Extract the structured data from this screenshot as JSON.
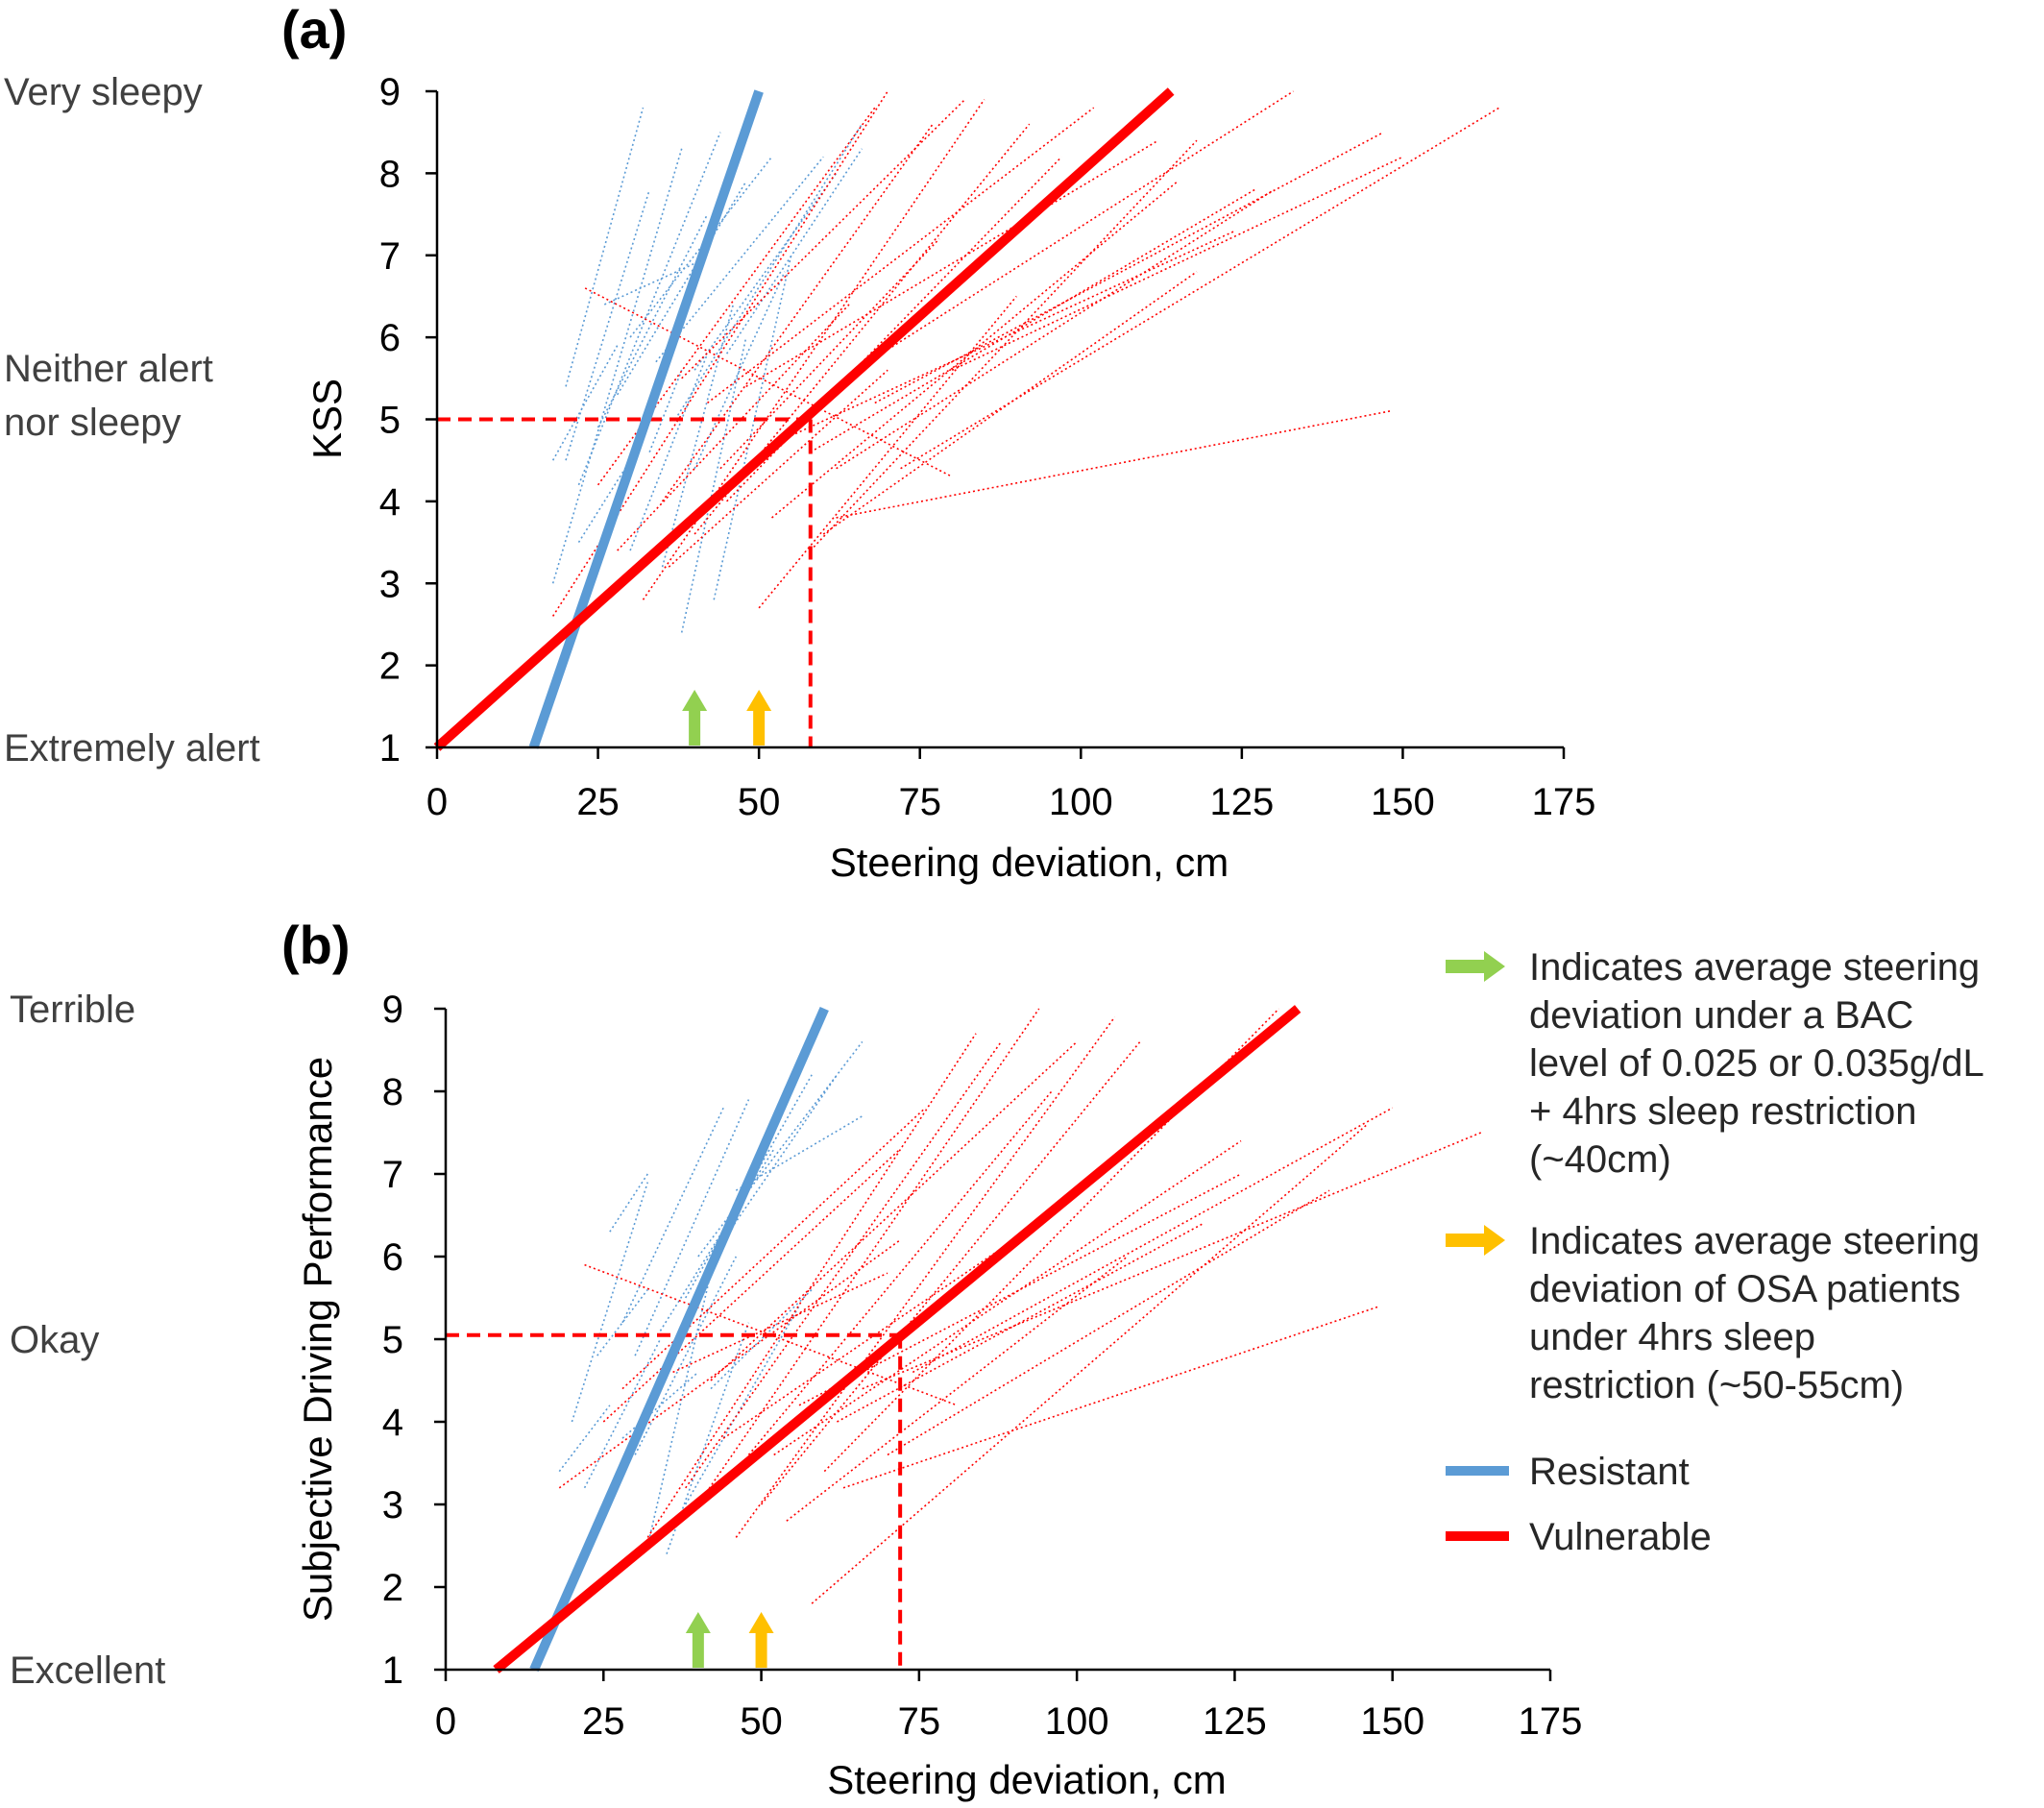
{
  "chart_data": [
    {
      "type": "line",
      "panel": "(a)",
      "xlabel": "Steering deviation, cm",
      "ylabel": "KSS",
      "xlim": [
        0,
        175
      ],
      "ylim": [
        1,
        9
      ],
      "xticks": [
        0,
        25,
        50,
        75,
        100,
        125,
        150,
        175
      ],
      "yticks": [
        1,
        2,
        3,
        4,
        5,
        6,
        7,
        8,
        9
      ],
      "side_labels": [
        {
          "y": 9,
          "text": "Very sleepy"
        },
        {
          "y": 5.3,
          "text": "Neither alert\nnor sleepy"
        },
        {
          "y": 1,
          "text": "Extremely alert"
        }
      ],
      "series": [
        {
          "name": "Resistant",
          "color": "#5b9bd5",
          "kind": "group",
          "x": [
            15,
            50
          ],
          "y": [
            1,
            9
          ]
        },
        {
          "name": "Vulnerable",
          "color": "#ff0000",
          "kind": "group",
          "x": [
            0,
            114
          ],
          "y": [
            1,
            9
          ]
        }
      ],
      "individual_lines": {
        "resistant": [
          [
            [
              20,
              5.4
            ],
            [
              32,
              8.8
            ]
          ],
          [
            [
              18,
              3.0
            ],
            [
              38,
              8.3
            ]
          ],
          [
            [
              22,
              4.2
            ],
            [
              44,
              8.5
            ]
          ],
          [
            [
              20,
              4.5
            ],
            [
              33,
              7.8
            ]
          ],
          [
            [
              25,
              4.9
            ],
            [
              42,
              7.5
            ]
          ],
          [
            [
              28,
              5.3
            ],
            [
              48,
              7.9
            ]
          ],
          [
            [
              30,
              6.0
            ],
            [
              52,
              8.2
            ]
          ],
          [
            [
              34,
              5.7
            ],
            [
              60,
              8.2
            ]
          ],
          [
            [
              37,
              5.0
            ],
            [
              66,
              8.6
            ]
          ],
          [
            [
              40,
              5.6
            ],
            [
              62,
              8.0
            ]
          ],
          [
            [
              45,
              5.8
            ],
            [
              66,
              8.3
            ]
          ],
          [
            [
              26,
              6.4
            ],
            [
              40,
              6.9
            ]
          ],
          [
            [
              35,
              3.2
            ],
            [
              46,
              6.4
            ]
          ],
          [
            [
              38,
              2.4
            ],
            [
              48,
              6.0
            ]
          ],
          [
            [
              30,
              3.4
            ],
            [
              42,
              5.8
            ]
          ],
          [
            [
              40,
              4.4
            ],
            [
              54,
              6.8
            ]
          ],
          [
            [
              43,
              2.8
            ],
            [
              55,
              7.0
            ]
          ],
          [
            [
              18,
              4.5
            ],
            [
              28,
              5.9
            ]
          ],
          [
            [
              22,
              3.5
            ],
            [
              30,
              4.5
            ]
          ],
          [
            [
              33,
              4.6
            ],
            [
              38,
              5.6
            ]
          ]
        ],
        "vulnerable": [
          [
            [
              18,
              2.6
            ],
            [
              70,
              9.0
            ]
          ],
          [
            [
              25,
              4.2
            ],
            [
              68,
              8.8
            ]
          ],
          [
            [
              32,
              2.8
            ],
            [
              85,
              8.9
            ]
          ],
          [
            [
              35,
              4.0
            ],
            [
              77,
              8.6
            ]
          ],
          [
            [
              38,
              5.5
            ],
            [
              82,
              8.9
            ]
          ],
          [
            [
              40,
              3.6
            ],
            [
              92,
              8.6
            ]
          ],
          [
            [
              42,
              5.2
            ],
            [
              102,
              8.8
            ]
          ],
          [
            [
              45,
              4.0
            ],
            [
              97,
              8.2
            ]
          ],
          [
            [
              48,
              5.4
            ],
            [
              112,
              8.4
            ]
          ],
          [
            [
              52,
              3.8
            ],
            [
              115,
              7.9
            ]
          ],
          [
            [
              55,
              4.8
            ],
            [
              124,
              7.3
            ]
          ],
          [
            [
              58,
              4.6
            ],
            [
              127,
              7.8
            ]
          ],
          [
            [
              60,
              3.6
            ],
            [
              118,
              6.8
            ]
          ],
          [
            [
              62,
              4.4
            ],
            [
              130,
              7.8
            ]
          ],
          [
            [
              65,
              5.6
            ],
            [
              133,
              9.0
            ]
          ],
          [
            [
              68,
              5.2
            ],
            [
              147,
              8.5
            ]
          ],
          [
            [
              62,
              3.8
            ],
            [
              148,
              5.1
            ]
          ],
          [
            [
              23,
              6.6
            ],
            [
              80,
              4.3
            ]
          ],
          [
            [
              28,
              3.4
            ],
            [
              64,
              6.4
            ]
          ],
          [
            [
              50,
              2.7
            ],
            [
              90,
              6.5
            ]
          ],
          [
            [
              58,
              3.4
            ],
            [
              118,
              8.4
            ]
          ],
          [
            [
              72,
              4.4
            ],
            [
              165,
              8.8
            ]
          ],
          [
            [
              80,
              5.6
            ],
            [
              150,
              8.2
            ]
          ],
          [
            [
              44,
              4.4
            ],
            [
              78,
              7.2
            ]
          ],
          [
            [
              36,
              3.2
            ],
            [
              70,
              5.6
            ]
          ]
        ]
      },
      "reference": {
        "x": 58,
        "y": 5
      },
      "arrows": [
        {
          "x": 40,
          "color": "#92d050"
        },
        {
          "x": 50,
          "color": "#ffc000"
        }
      ]
    },
    {
      "type": "line",
      "panel": "(b)",
      "xlabel": "Steering deviation, cm",
      "ylabel": "Subjective Driving Performance",
      "xlim": [
        0,
        175
      ],
      "ylim": [
        1,
        9
      ],
      "xticks": [
        0,
        25,
        50,
        75,
        100,
        125,
        150,
        175
      ],
      "yticks": [
        1,
        2,
        3,
        4,
        5,
        6,
        7,
        8,
        9
      ],
      "side_labels": [
        {
          "y": 9,
          "text": "Terrible"
        },
        {
          "y": 5,
          "text": "Okay"
        },
        {
          "y": 1,
          "text": "Excellent"
        }
      ],
      "series": [
        {
          "name": "Resistant",
          "color": "#5b9bd5",
          "kind": "group",
          "x": [
            14,
            60
          ],
          "y": [
            1,
            9
          ]
        },
        {
          "name": "Vulnerable",
          "color": "#ff0000",
          "kind": "group",
          "x": [
            8,
            135
          ],
          "y": [
            1,
            9
          ]
        }
      ],
      "individual_lines": {
        "resistant": [
          [
            [
              20,
              4.0
            ],
            [
              32,
              6.9
            ]
          ],
          [
            [
              26,
              6.3
            ],
            [
              32,
              7.0
            ]
          ],
          [
            [
              28,
              5.2
            ],
            [
              44,
              7.8
            ]
          ],
          [
            [
              30,
              4.8
            ],
            [
              48,
              7.9
            ]
          ],
          [
            [
              34,
              5.1
            ],
            [
              52,
              7.3
            ]
          ],
          [
            [
              38,
              5.5
            ],
            [
              58,
              8.2
            ]
          ],
          [
            [
              40,
              6.0
            ],
            [
              66,
              8.6
            ]
          ],
          [
            [
              44,
              6.2
            ],
            [
              62,
              8.2
            ]
          ],
          [
            [
              46,
              6.8
            ],
            [
              66,
              7.7
            ]
          ],
          [
            [
              30,
              3.6
            ],
            [
              46,
              6.0
            ]
          ],
          [
            [
              32,
              2.5
            ],
            [
              42,
              5.8
            ]
          ],
          [
            [
              22,
              3.2
            ],
            [
              34,
              5.0
            ]
          ],
          [
            [
              35,
              2.4
            ],
            [
              48,
              5.2
            ]
          ],
          [
            [
              38,
              3.0
            ],
            [
              56,
              5.4
            ]
          ],
          [
            [
              28,
              3.8
            ],
            [
              40,
              4.6
            ]
          ],
          [
            [
              42,
              4.4
            ],
            [
              58,
              5.6
            ]
          ],
          [
            [
              18,
              3.4
            ],
            [
              26,
              4.2
            ]
          ],
          [
            [
              24,
              4.8
            ],
            [
              32,
              5.6
            ]
          ]
        ],
        "vulnerable": [
          [
            [
              18,
              3.2
            ],
            [
              72,
              6.2
            ]
          ],
          [
            [
              22,
              5.9
            ],
            [
              81,
              4.2
            ]
          ],
          [
            [
              25,
              4.0
            ],
            [
              72,
              7.3
            ]
          ],
          [
            [
              28,
              4.4
            ],
            [
              76,
              7.8
            ]
          ],
          [
            [
              32,
              2.6
            ],
            [
              84,
              8.7
            ]
          ],
          [
            [
              38,
              3.2
            ],
            [
              88,
              8.6
            ]
          ],
          [
            [
              40,
              3.0
            ],
            [
              94,
              9.0
            ]
          ],
          [
            [
              42,
              4.5
            ],
            [
              100,
              8.6
            ]
          ],
          [
            [
              46,
              2.6
            ],
            [
              106,
              8.9
            ]
          ],
          [
            [
              48,
              3.6
            ],
            [
              96,
              8.0
            ]
          ],
          [
            [
              50,
              3.0
            ],
            [
              110,
              8.6
            ]
          ],
          [
            [
              52,
              3.6
            ],
            [
              126,
              7.4
            ]
          ],
          [
            [
              56,
              4.2
            ],
            [
              126,
              7.0
            ]
          ],
          [
            [
              60,
              3.4
            ],
            [
              132,
              9.0
            ]
          ],
          [
            [
              63,
              3.2
            ],
            [
              148,
              5.4
            ]
          ],
          [
            [
              58,
              1.8
            ],
            [
              146,
              7.6
            ]
          ],
          [
            [
              66,
              4.4
            ],
            [
              164,
              7.5
            ]
          ],
          [
            [
              70,
              3.6
            ],
            [
              140,
              6.8
            ]
          ],
          [
            [
              44,
              3.8
            ],
            [
              90,
              6.2
            ]
          ],
          [
            [
              36,
              4.6
            ],
            [
              70,
              5.8
            ]
          ],
          [
            [
              54,
              2.8
            ],
            [
              108,
              6.0
            ]
          ],
          [
            [
              62,
              4.0
            ],
            [
              120,
              6.4
            ]
          ],
          [
            [
              74,
              4.6
            ],
            [
              150,
              7.8
            ]
          ]
        ]
      },
      "reference": {
        "x": 72,
        "y": 5.05
      },
      "arrows": [
        {
          "x": 40,
          "color": "#92d050"
        },
        {
          "x": 50,
          "color": "#ffc000"
        }
      ]
    }
  ],
  "legend": {
    "items": [
      {
        "type": "arrow",
        "color": "#92d050",
        "lines": [
          "Indicates average steering",
          "deviation under a BAC",
          "level of 0.025 or 0.035g/dL",
          "+ 4hrs sleep restriction",
          "(~40cm)"
        ]
      },
      {
        "type": "arrow",
        "color": "#ffc000",
        "lines": [
          "Indicates average steering",
          "deviation of OSA patients",
          "under 4hrs sleep",
          "restriction (~50-55cm)"
        ]
      },
      {
        "type": "line",
        "color": "#5b9bd5",
        "lines": [
          "Resistant"
        ]
      },
      {
        "type": "line",
        "color": "#ff0000",
        "lines": [
          "Vulnerable"
        ]
      }
    ]
  }
}
